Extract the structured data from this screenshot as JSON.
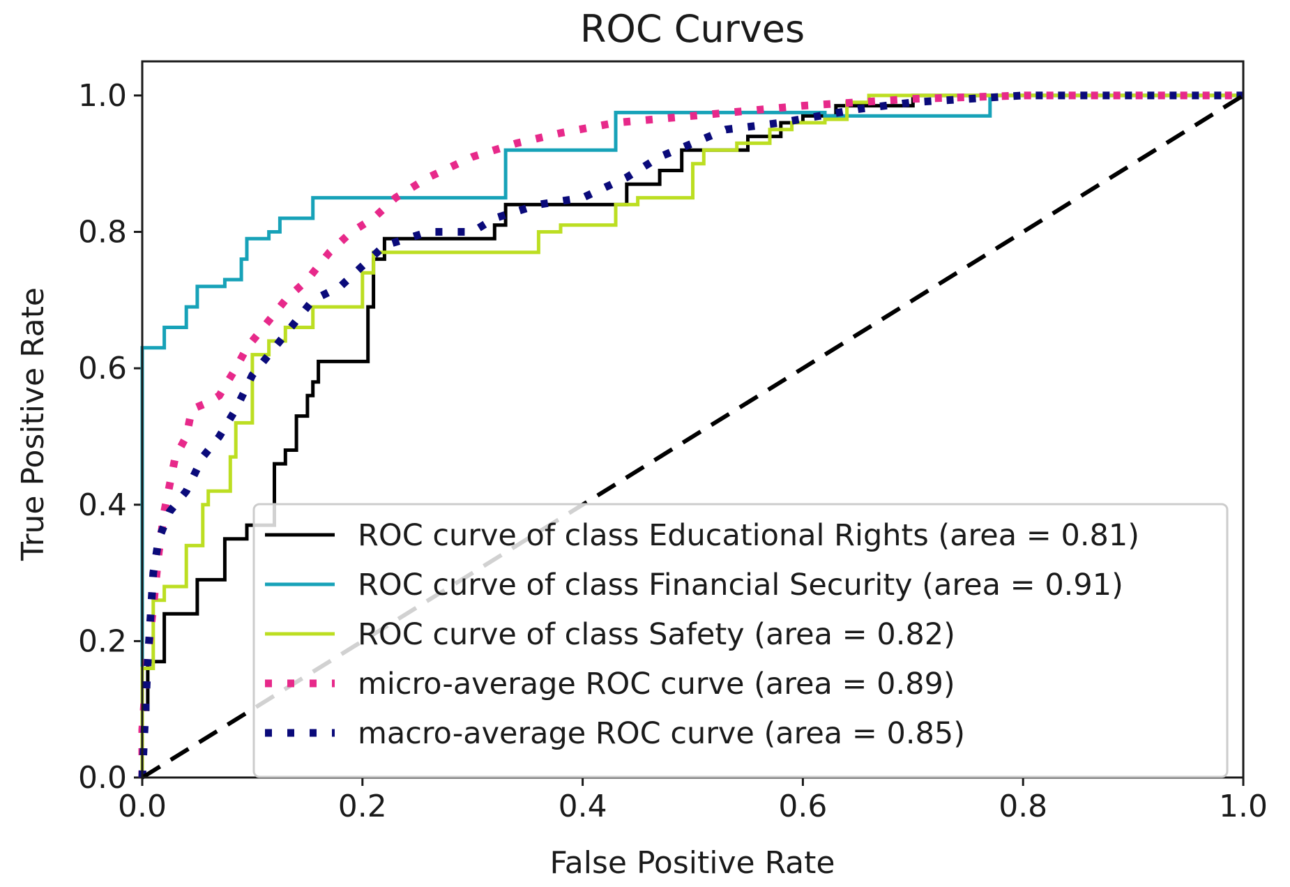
{
  "chart_data": {
    "type": "line",
    "title": "ROC Curves",
    "xlabel": "False Positive Rate",
    "ylabel": "True Positive Rate",
    "xlim": [
      0.0,
      1.0
    ],
    "ylim": [
      0.0,
      1.05
    ],
    "xticks": [
      "0.0",
      "0.2",
      "0.4",
      "0.6",
      "0.8",
      "1.0"
    ],
    "yticks": [
      "0.0",
      "0.2",
      "0.4",
      "0.6",
      "0.8",
      "1.0"
    ],
    "grid": false,
    "legend_position": "lower-right",
    "series": [
      {
        "name": "ROC curve of class Educational Rights (area = 0.81)",
        "color": "#000000",
        "style": "solid",
        "x": [
          0.0,
          0.0,
          0.005,
          0.005,
          0.02,
          0.02,
          0.05,
          0.05,
          0.075,
          0.075,
          0.095,
          0.095,
          0.12,
          0.12,
          0.13,
          0.13,
          0.14,
          0.14,
          0.15,
          0.15,
          0.155,
          0.155,
          0.16,
          0.16,
          0.205,
          0.205,
          0.21,
          0.21,
          0.22,
          0.22,
          0.32,
          0.32,
          0.33,
          0.33,
          0.44,
          0.44,
          0.47,
          0.47,
          0.49,
          0.49,
          0.55,
          0.55,
          0.58,
          0.58,
          0.6,
          0.6,
          0.63,
          0.63,
          0.7,
          0.7,
          1.0
        ],
        "y": [
          0.0,
          0.1,
          0.1,
          0.17,
          0.17,
          0.24,
          0.24,
          0.29,
          0.29,
          0.35,
          0.35,
          0.37,
          0.37,
          0.46,
          0.46,
          0.48,
          0.48,
          0.53,
          0.53,
          0.56,
          0.56,
          0.58,
          0.58,
          0.61,
          0.61,
          0.69,
          0.69,
          0.76,
          0.76,
          0.79,
          0.79,
          0.81,
          0.81,
          0.84,
          0.84,
          0.87,
          0.87,
          0.89,
          0.89,
          0.92,
          0.92,
          0.94,
          0.94,
          0.96,
          0.96,
          0.97,
          0.97,
          0.985,
          0.985,
          1.0,
          1.0
        ]
      },
      {
        "name": "ROC curve of class Financial Security (area = 0.91)",
        "color": "#17a2b8",
        "style": "solid",
        "x": [
          0.0,
          0.0,
          0.02,
          0.02,
          0.04,
          0.04,
          0.05,
          0.05,
          0.075,
          0.075,
          0.09,
          0.09,
          0.095,
          0.095,
          0.115,
          0.115,
          0.125,
          0.125,
          0.155,
          0.155,
          0.33,
          0.33,
          0.43,
          0.43,
          0.62,
          0.62,
          0.77,
          0.77,
          1.0
        ],
        "y": [
          0.0,
          0.63,
          0.63,
          0.66,
          0.66,
          0.69,
          0.69,
          0.72,
          0.72,
          0.73,
          0.73,
          0.76,
          0.76,
          0.79,
          0.79,
          0.8,
          0.8,
          0.82,
          0.82,
          0.85,
          0.85,
          0.92,
          0.92,
          0.975,
          0.975,
          0.97,
          0.97,
          1.0,
          1.0
        ]
      },
      {
        "name": "ROC curve of class Safety (area = 0.82)",
        "color": "#bcde22",
        "style": "solid",
        "x": [
          0.0,
          0.0,
          0.01,
          0.01,
          0.02,
          0.02,
          0.04,
          0.04,
          0.055,
          0.055,
          0.06,
          0.06,
          0.08,
          0.08,
          0.085,
          0.085,
          0.1,
          0.1,
          0.115,
          0.115,
          0.13,
          0.13,
          0.155,
          0.155,
          0.2,
          0.2,
          0.21,
          0.21,
          0.36,
          0.36,
          0.38,
          0.38,
          0.43,
          0.43,
          0.45,
          0.45,
          0.5,
          0.5,
          0.51,
          0.51,
          0.54,
          0.54,
          0.57,
          0.57,
          0.59,
          0.59,
          0.62,
          0.62,
          0.64,
          0.64,
          0.66,
          0.66,
          1.0
        ],
        "y": [
          0.0,
          0.16,
          0.16,
          0.26,
          0.26,
          0.28,
          0.28,
          0.34,
          0.34,
          0.4,
          0.4,
          0.42,
          0.42,
          0.47,
          0.47,
          0.52,
          0.52,
          0.62,
          0.62,
          0.64,
          0.64,
          0.66,
          0.66,
          0.69,
          0.69,
          0.74,
          0.74,
          0.77,
          0.77,
          0.8,
          0.8,
          0.81,
          0.81,
          0.84,
          0.84,
          0.85,
          0.85,
          0.9,
          0.9,
          0.92,
          0.92,
          0.93,
          0.93,
          0.95,
          0.95,
          0.96,
          0.96,
          0.965,
          0.965,
          0.99,
          0.99,
          1.0,
          1.0
        ]
      },
      {
        "name": "micro-average ROC curve (area = 0.89)",
        "color": "#e7298a",
        "style": "dotted",
        "x": [
          0.0,
          0.0,
          0.005,
          0.01,
          0.015,
          0.02,
          0.03,
          0.04,
          0.045,
          0.06,
          0.07,
          0.085,
          0.095,
          0.11,
          0.13,
          0.15,
          0.17,
          0.19,
          0.21,
          0.23,
          0.26,
          0.3,
          0.34,
          0.38,
          0.43,
          0.5,
          0.6,
          0.7,
          0.8,
          0.9,
          1.0
        ],
        "y": [
          0.0,
          0.07,
          0.18,
          0.25,
          0.33,
          0.39,
          0.47,
          0.5,
          0.54,
          0.55,
          0.56,
          0.6,
          0.63,
          0.66,
          0.7,
          0.73,
          0.77,
          0.8,
          0.82,
          0.85,
          0.88,
          0.91,
          0.93,
          0.945,
          0.96,
          0.97,
          0.985,
          0.995,
          1.0,
          1.0,
          1.0
        ]
      },
      {
        "name": "macro-average ROC curve (area = 0.85)",
        "color": "#0a0a7a",
        "style": "dotted",
        "x": [
          0.0,
          0.005,
          0.01,
          0.015,
          0.025,
          0.04,
          0.055,
          0.07,
          0.085,
          0.1,
          0.115,
          0.135,
          0.155,
          0.18,
          0.2,
          0.22,
          0.26,
          0.3,
          0.32,
          0.36,
          0.4,
          0.44,
          0.47,
          0.5,
          0.53,
          0.58,
          0.65,
          0.7,
          0.8,
          0.9,
          1.0
        ],
        "y": [
          0.0,
          0.17,
          0.3,
          0.35,
          0.39,
          0.42,
          0.47,
          0.5,
          0.54,
          0.59,
          0.62,
          0.66,
          0.7,
          0.72,
          0.75,
          0.78,
          0.8,
          0.8,
          0.82,
          0.84,
          0.85,
          0.88,
          0.91,
          0.93,
          0.95,
          0.96,
          0.98,
          0.99,
          1.0,
          1.0,
          1.0
        ]
      },
      {
        "name": "",
        "color": "#000000",
        "style": "dashed",
        "x": [
          0.0,
          1.0
        ],
        "y": [
          0.0,
          1.0
        ]
      }
    ]
  }
}
